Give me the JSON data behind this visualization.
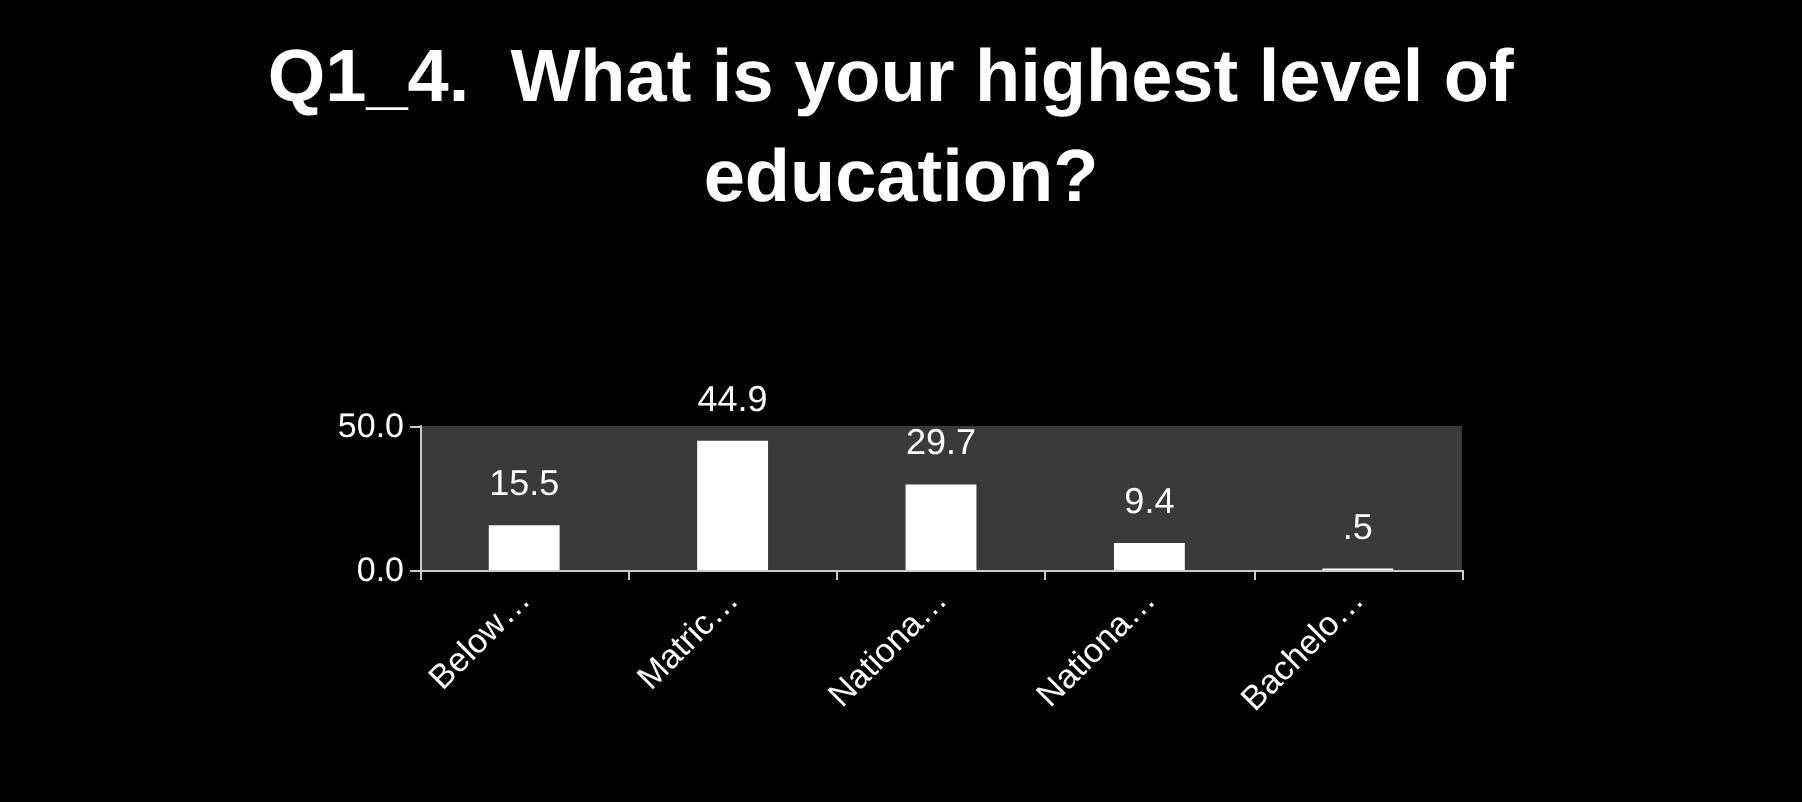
{
  "chart_data": {
    "type": "bar",
    "title": "Q1_4.  What is your highest level of education?",
    "categories": [
      "Below…",
      "Matric…",
      "Nationa…",
      "Nationa…",
      "Bachelo…"
    ],
    "values": [
      15.5,
      44.9,
      29.7,
      9.4,
      0.5
    ],
    "value_labels": [
      "15.5",
      "44.9",
      "29.7",
      "9.4",
      ".5"
    ],
    "color": "#ffffff",
    "ylim": [
      0,
      50
    ],
    "yticks": [
      {
        "value": 0,
        "label": "0.0"
      },
      {
        "value": 50,
        "label": "50.0"
      }
    ],
    "grid": false
  }
}
